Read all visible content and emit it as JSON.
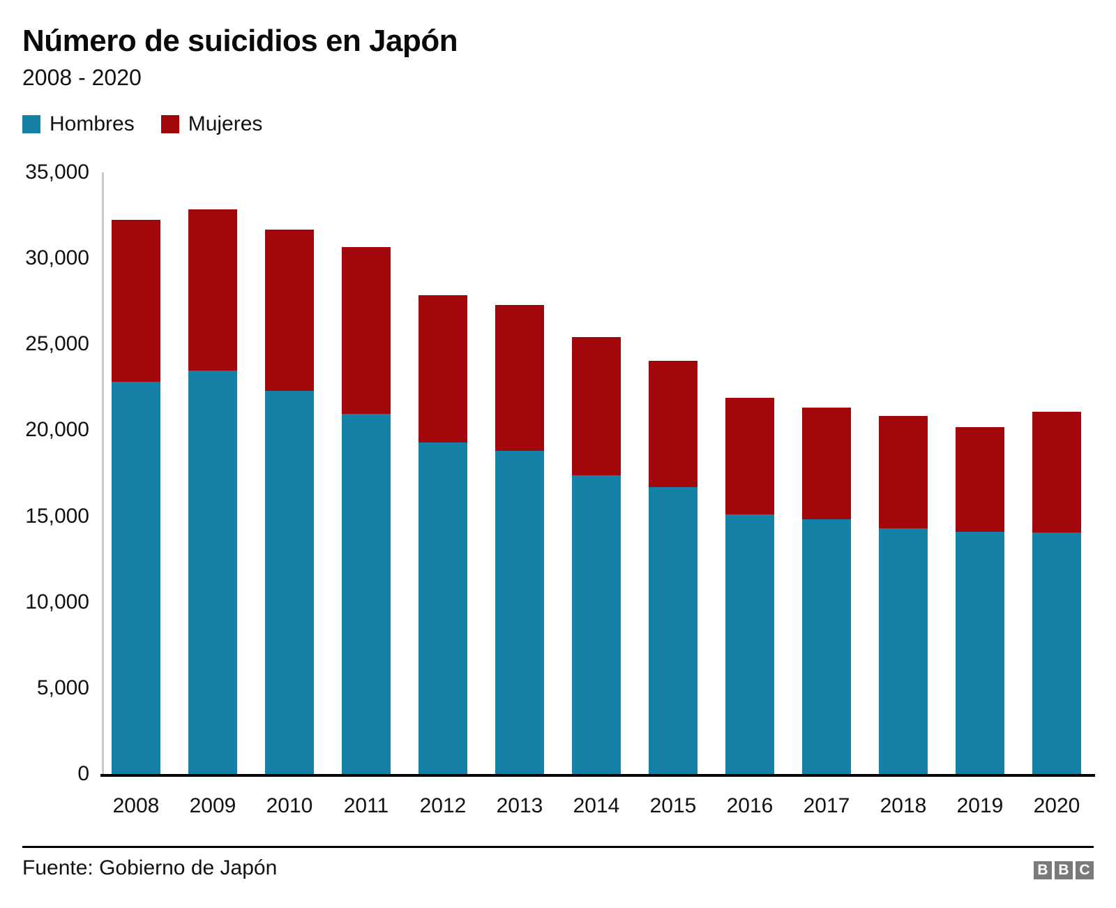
{
  "header": {
    "title": "Número de suicidios en Japón",
    "subtitle": "2008 - 2020"
  },
  "legend": {
    "items": [
      {
        "label": "Hombres",
        "color": "#1681a6"
      },
      {
        "label": "Mujeres",
        "color": "#a1070b"
      }
    ]
  },
  "chart_data": {
    "type": "bar",
    "stacked": true,
    "title": "Número de suicidios en Japón",
    "subtitle": "2008 - 2020",
    "categories": [
      "2008",
      "2009",
      "2010",
      "2011",
      "2012",
      "2013",
      "2014",
      "2015",
      "2016",
      "2017",
      "2018",
      "2019",
      "2020"
    ],
    "series": [
      {
        "name": "Hombres",
        "color": "#1681a6",
        "values": [
          22831,
          23472,
          22283,
          20955,
          19273,
          18787,
          17386,
          16681,
          15121,
          14826,
          14290,
          14078,
          14055
        ]
      },
      {
        "name": "Mujeres",
        "color": "#a1070b",
        "values": [
          9418,
          9373,
          9407,
          9696,
          8585,
          8496,
          8041,
          7344,
          6776,
          6495,
          6550,
          6091,
          7026
        ]
      }
    ],
    "xlabel": "",
    "ylabel": "",
    "ylim": [
      0,
      35000
    ],
    "yticks": [
      0,
      5000,
      10000,
      15000,
      20000,
      25000,
      30000,
      35000
    ],
    "ytick_labels": [
      "0",
      "5,000",
      "10,000",
      "15,000",
      "20,000",
      "25,000",
      "30,000",
      "35,000"
    ],
    "grid": false,
    "legend_position": "top-left"
  },
  "footer": {
    "source": "Fuente: Gobierno de Japón",
    "logo_letters": [
      "B",
      "B",
      "C"
    ]
  },
  "colors": {
    "men": "#1681a6",
    "women": "#a1070b",
    "y_axis_line": "#c9c9c9",
    "baseline": "#000000",
    "text": "#111111",
    "logo_gray": "#7a7a7a"
  }
}
